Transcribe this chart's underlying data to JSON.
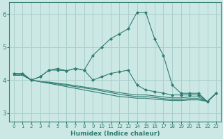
{
  "xlabel": "Humidex (Indice chaleur)",
  "bg_color": "#cce8e5",
  "grid_color": "#aacfcc",
  "line_color": "#2e7d72",
  "xlim": [
    -0.5,
    23.5
  ],
  "ylim": [
    2.75,
    6.35
  ],
  "yticks": [
    3,
    4,
    5,
    6
  ],
  "xtick_labels": [
    "0",
    "1",
    "2",
    "3",
    "4",
    "5",
    "6",
    "7",
    "8",
    "9",
    "10",
    "11",
    "12",
    "13",
    "14",
    "15",
    "16",
    "17",
    "18",
    "19",
    "20",
    "21",
    "22",
    "23"
  ],
  "lines_with_markers": [
    [
      4.2,
      4.2,
      4.0,
      4.1,
      4.3,
      4.35,
      4.28,
      4.35,
      4.3,
      4.75,
      5.0,
      5.25,
      5.4,
      5.55,
      6.05,
      6.05,
      5.25,
      4.75,
      3.85,
      3.6,
      3.6,
      3.6,
      3.35,
      3.6
    ],
    [
      4.2,
      4.2,
      4.0,
      4.1,
      4.3,
      4.3,
      4.28,
      4.35,
      4.3,
      4.0,
      4.1,
      4.2,
      4.25,
      4.3,
      3.85,
      3.7,
      3.65,
      3.6,
      3.55,
      3.55,
      3.55,
      3.55,
      3.35,
      3.6
    ]
  ],
  "lines_no_markers": [
    [
      4.15,
      4.15,
      4.0,
      3.95,
      3.9,
      3.85,
      3.8,
      3.75,
      3.7,
      3.65,
      3.6,
      3.55,
      3.5,
      3.48,
      3.45,
      3.45,
      3.42,
      3.4,
      3.38,
      3.38,
      3.4,
      3.4,
      3.35,
      3.6
    ],
    [
      4.15,
      4.15,
      4.0,
      3.95,
      3.92,
      3.88,
      3.84,
      3.8,
      3.76,
      3.72,
      3.67,
      3.62,
      3.57,
      3.53,
      3.5,
      3.5,
      3.47,
      3.44,
      3.41,
      3.41,
      3.44,
      3.44,
      3.35,
      3.6
    ],
    [
      4.15,
      4.15,
      4.0,
      3.95,
      3.94,
      3.9,
      3.87,
      3.83,
      3.79,
      3.75,
      3.71,
      3.66,
      3.62,
      3.58,
      3.55,
      3.55,
      3.52,
      3.49,
      3.46,
      3.46,
      3.49,
      3.49,
      3.35,
      3.6
    ]
  ]
}
